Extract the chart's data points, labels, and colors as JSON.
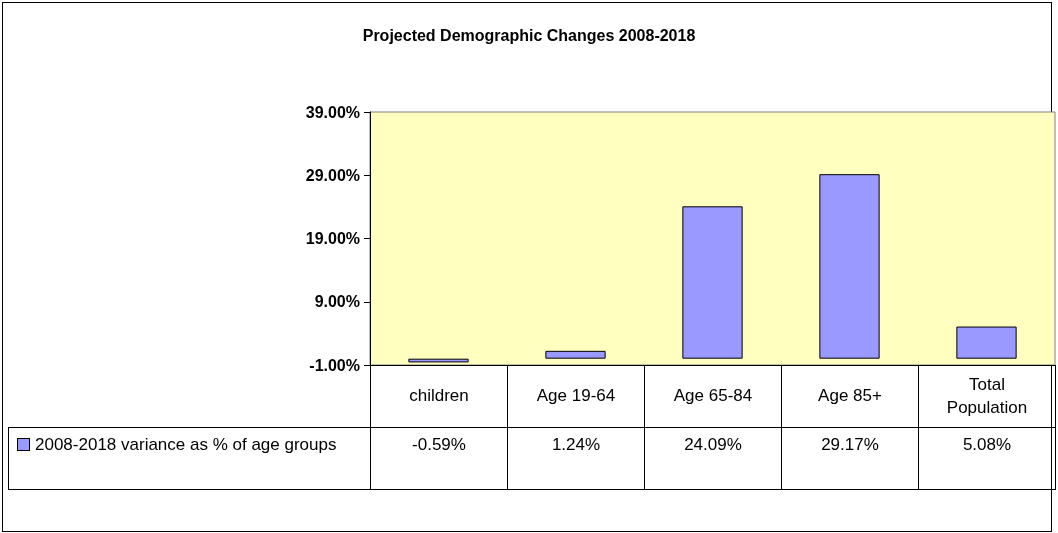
{
  "chart_data": {
    "type": "bar",
    "title": "Projected Demographic Changes 2008-2018",
    "categories": [
      "children",
      "Age 19-64",
      "Age 65-84",
      "Age 85+",
      "Total Population"
    ],
    "series": [
      {
        "name": "2008-2018 variance as % of age groups",
        "color": "#9999ff",
        "values": [
          -0.59,
          1.24,
          24.09,
          29.17,
          5.08
        ],
        "value_labels": [
          "-0.59%",
          "1.24%",
          "24.09%",
          "29.17%",
          "5.08%"
        ]
      }
    ],
    "ylim": [
      -1,
      39
    ],
    "yticks": [
      {
        "value": -1,
        "label": "-1.00%"
      },
      {
        "value": 9,
        "label": "9.00%"
      },
      {
        "value": 19,
        "label": "19.00%"
      },
      {
        "value": 29,
        "label": "29.00%"
      },
      {
        "value": 39,
        "label": "39.00%"
      }
    ],
    "grid": false,
    "legend": "bottom"
  }
}
